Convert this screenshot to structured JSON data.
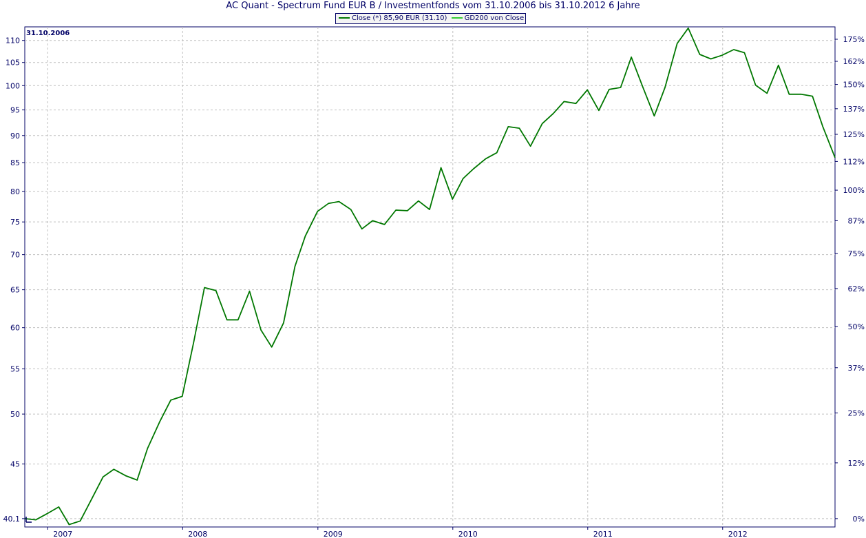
{
  "title": "AC Quant - Spectrum Fund EUR B / Investmentfonds vom 31.10.2006 bis 31.10.2012 6 Jahre",
  "legend": [
    {
      "label": "Close (*) 85,90 EUR (31.10)",
      "color": "#007700"
    },
    {
      "label": "GD200 von Close",
      "color": "#33cc33"
    }
  ],
  "start_label": "31.10.2006",
  "chart_data": {
    "type": "line",
    "title": "AC Quant - Spectrum Fund EUR B / Investmentfonds vom 31.10.2006 bis 31.10.2012 6 Jahre",
    "y_scale": "log",
    "ylim": [
      39.4,
      113.2
    ],
    "xlim": [
      "2006-10-31",
      "2012-10-31"
    ],
    "y_ticks": [
      {
        "value": 40.1,
        "label": "40,1"
      },
      {
        "value": 45,
        "label": "45"
      },
      {
        "value": 50,
        "label": "50"
      },
      {
        "value": 55,
        "label": "55"
      },
      {
        "value": 60,
        "label": "60"
      },
      {
        "value": 65,
        "label": "65"
      },
      {
        "value": 70,
        "label": "70"
      },
      {
        "value": 75,
        "label": "75"
      },
      {
        "value": 80,
        "label": "80"
      },
      {
        "value": 85,
        "label": "85"
      },
      {
        "value": 90,
        "label": "90"
      },
      {
        "value": 95,
        "label": "95"
      },
      {
        "value": 100,
        "label": "100"
      },
      {
        "value": 105,
        "label": "105"
      },
      {
        "value": 110,
        "label": "110"
      }
    ],
    "y2_ticks": [
      {
        "value": 40.1,
        "label": "0%"
      },
      {
        "value": 45.11,
        "label": "12%"
      },
      {
        "value": 50.12,
        "label": "25%"
      },
      {
        "value": 55.14,
        "label": "37%"
      },
      {
        "value": 60.15,
        "label": "50%"
      },
      {
        "value": 65.16,
        "label": "62%"
      },
      {
        "value": 70.18,
        "label": "75%"
      },
      {
        "value": 75.19,
        "label": "87%"
      },
      {
        "value": 80.2,
        "label": "100%"
      },
      {
        "value": 85.21,
        "label": "112%"
      },
      {
        "value": 90.23,
        "label": "125%"
      },
      {
        "value": 95.24,
        "label": "137%"
      },
      {
        "value": 100.25,
        "label": "150%"
      },
      {
        "value": 105.26,
        "label": "162%"
      },
      {
        "value": 110.28,
        "label": "175%"
      }
    ],
    "x_ticks": [
      "2007",
      "2008",
      "2009",
      "2010",
      "2011",
      "2012"
    ],
    "x_tick_dates": [
      "2007-01-01",
      "2008-01-01",
      "2009-01-01",
      "2010-01-01",
      "2011-01-01",
      "2012-01-01"
    ],
    "grid": true,
    "legend_position": "top",
    "series": [
      {
        "name": "Close (*) 85,90 EUR (31.10)",
        "color": "#007700",
        "x": [
          "2006-10-31",
          "2006-11-30",
          "2006-12-29",
          "2007-01-31",
          "2007-02-28",
          "2007-03-30",
          "2007-04-30",
          "2007-05-31",
          "2007-06-29",
          "2007-07-31",
          "2007-08-31",
          "2007-09-28",
          "2007-10-31",
          "2007-11-30",
          "2007-12-31",
          "2008-01-31",
          "2008-02-29",
          "2008-03-31",
          "2008-04-30",
          "2008-05-30",
          "2008-06-30",
          "2008-07-31",
          "2008-08-29",
          "2008-09-30",
          "2008-10-31",
          "2008-11-28",
          "2008-12-31",
          "2009-01-30",
          "2009-02-27",
          "2009-03-31",
          "2009-04-30",
          "2009-05-29",
          "2009-06-30",
          "2009-07-31",
          "2009-08-31",
          "2009-09-30",
          "2009-10-30",
          "2009-11-30",
          "2009-12-31",
          "2010-01-29",
          "2010-02-26",
          "2010-03-31",
          "2010-04-30",
          "2010-05-31",
          "2010-06-30",
          "2010-07-30",
          "2010-08-31",
          "2010-09-30",
          "2010-10-29",
          "2010-11-30",
          "2010-12-31",
          "2011-01-31",
          "2011-02-28",
          "2011-03-31",
          "2011-04-29",
          "2011-05-31",
          "2011-06-30",
          "2011-07-29",
          "2011-08-31",
          "2011-09-30",
          "2011-10-31",
          "2011-11-30",
          "2011-12-30",
          "2012-01-31",
          "2012-02-29",
          "2012-03-30",
          "2012-04-30",
          "2012-05-31",
          "2012-06-29",
          "2012-07-31",
          "2012-08-31",
          "2012-09-28",
          "2012-10-31"
        ],
        "values": [
          40.1,
          40.0,
          40.5,
          41.1,
          39.6,
          39.9,
          41.8,
          43.8,
          44.5,
          43.9,
          43.5,
          46.5,
          49.2,
          51.5,
          51.9,
          58.2,
          65.3,
          64.9,
          61.0,
          61.0,
          64.8,
          59.7,
          57.6,
          60.6,
          68.3,
          72.8,
          76.7,
          78.0,
          78.3,
          77.0,
          73.9,
          75.2,
          74.6,
          76.9,
          76.8,
          78.4,
          77.0,
          84.1,
          78.7,
          82.2,
          83.9,
          85.7,
          86.8,
          91.7,
          91.4,
          88.0,
          92.3,
          94.3,
          96.7,
          96.3,
          99.1,
          94.9,
          99.2,
          99.6,
          106.2,
          99.5,
          93.8,
          99.6,
          109.3,
          112.9,
          106.8,
          105.8,
          106.6,
          107.9,
          107.2,
          100.1,
          98.4,
          104.4,
          98.2,
          98.2,
          97.8,
          91.7,
          85.9
        ]
      }
    ]
  }
}
